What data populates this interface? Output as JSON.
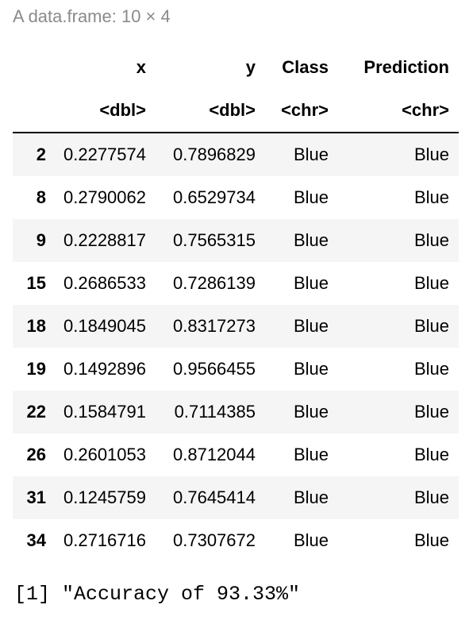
{
  "caption": "A data.frame: 10 × 4",
  "columns": [
    {
      "name": "x",
      "type": "<dbl>"
    },
    {
      "name": "y",
      "type": "<dbl>"
    },
    {
      "name": "Class",
      "type": "<chr>"
    },
    {
      "name": "Prediction",
      "type": "<chr>"
    }
  ],
  "rows": [
    {
      "rowname": "2",
      "x": "0.2277574",
      "y": "0.7896829",
      "class": "Blue",
      "prediction": "Blue"
    },
    {
      "rowname": "8",
      "x": "0.2790062",
      "y": "0.6529734",
      "class": "Blue",
      "prediction": "Blue"
    },
    {
      "rowname": "9",
      "x": "0.2228817",
      "y": "0.7565315",
      "class": "Blue",
      "prediction": "Blue"
    },
    {
      "rowname": "15",
      "x": "0.2686533",
      "y": "0.7286139",
      "class": "Blue",
      "prediction": "Blue"
    },
    {
      "rowname": "18",
      "x": "0.1849045",
      "y": "0.8317273",
      "class": "Blue",
      "prediction": "Blue"
    },
    {
      "rowname": "19",
      "x": "0.1492896",
      "y": "0.9566455",
      "class": "Blue",
      "prediction": "Blue"
    },
    {
      "rowname": "22",
      "x": "0.1584791",
      "y": "0.7114385",
      "class": "Blue",
      "prediction": "Blue"
    },
    {
      "rowname": "26",
      "x": "0.2601053",
      "y": "0.8712044",
      "class": "Blue",
      "prediction": "Blue"
    },
    {
      "rowname": "31",
      "x": "0.1245759",
      "y": "0.7645414",
      "class": "Blue",
      "prediction": "Blue"
    },
    {
      "rowname": "34",
      "x": "0.2716716",
      "y": "0.7307672",
      "class": "Blue",
      "prediction": "Blue"
    }
  ],
  "output": "[1] \"Accuracy of 93.33%\""
}
